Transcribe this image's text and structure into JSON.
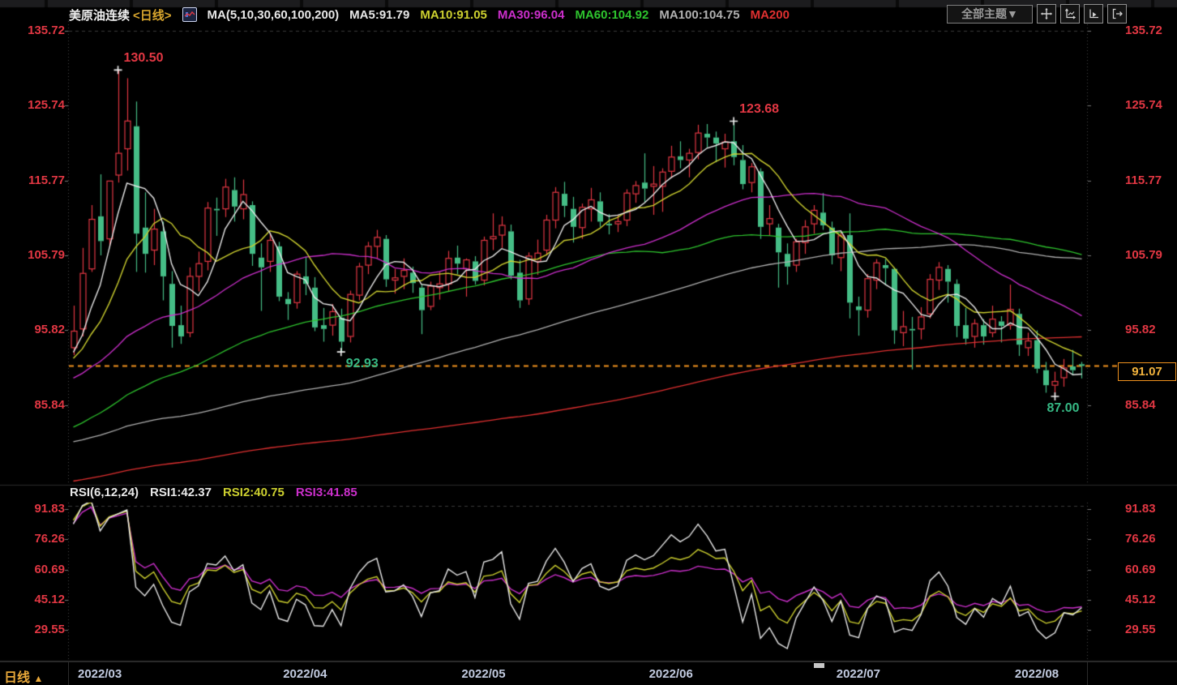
{
  "header": {
    "title": "美原油连续",
    "period": "<日线>",
    "indicator_icon": "candlestick-chart-icon",
    "legend": [
      {
        "text": "MA(5,10,30,60,100,200)",
        "color": "#e8e8e8"
      },
      {
        "text": "MA5:91.79",
        "color": "#e8e8e8"
      },
      {
        "text": "MA10:91.05",
        "color": "#cdd02f"
      },
      {
        "text": "MA30:96.04",
        "color": "#cc2fcc"
      },
      {
        "text": "MA60:104.92",
        "color": "#2ec52e"
      },
      {
        "text": "MA100:104.75",
        "color": "#b0b0b0"
      },
      {
        "text": "MA200",
        "color": "#e03030"
      }
    ],
    "toolbar": {
      "theme_button": "全部主题▼",
      "icons": [
        "pan-icon",
        "axis-scale-icon",
        "axis-play-icon",
        "exit-icon"
      ]
    }
  },
  "rsi_header": {
    "legend": [
      {
        "text": "RSI(6,12,24)",
        "color": "#e8e8e8"
      },
      {
        "text": "RSI1:42.37",
        "color": "#e8e8e8"
      },
      {
        "text": "RSI2:40.75",
        "color": "#cdd02f"
      },
      {
        "text": "RSI3:41.85",
        "color": "#cc2fcc"
      }
    ]
  },
  "bottom": {
    "period_label": "日线",
    "arrow": "▲"
  },
  "chart_data": {
    "type": "candlestick",
    "title": "美原油连续 (US Crude Oil Continuous)",
    "timeframe": "日线 (Daily)",
    "panels": [
      "price with MA(5,10,30,60,100,200)",
      "RSI(6,12,24)"
    ],
    "up_color": "#e23743",
    "down_color": "#45bd86",
    "price_ticks": [
      135.72,
      125.74,
      115.77,
      105.79,
      95.82,
      85.84
    ],
    "rsi_ticks": [
      91.83,
      76.26,
      60.69,
      45.12,
      29.55
    ],
    "x_ticks": [
      {
        "label": "2022/03",
        "index": 1
      },
      {
        "label": "2022/04",
        "index": 24
      },
      {
        "label": "2022/05",
        "index": 44
      },
      {
        "label": "2022/06",
        "index": 65
      },
      {
        "label": "2022/07",
        "index": 86
      },
      {
        "label": "2022/08",
        "index": 106
      }
    ],
    "last_price": 91.07,
    "last_price_label": "91.07",
    "annotations": [
      {
        "text": "130.50",
        "index": 5,
        "price": 130.5,
        "type": "high",
        "color": "#e23743"
      },
      {
        "text": "92.93",
        "index": 30,
        "price": 92.93,
        "type": "low",
        "color": "#36b884"
      },
      {
        "text": "123.68",
        "index": 74,
        "price": 123.68,
        "type": "high",
        "color": "#e23743"
      },
      {
        "text": "87.00",
        "index": 110,
        "price": 87.0,
        "type": "low",
        "color": "#36b884",
        "dx": -16
      }
    ],
    "ma": {
      "periods": [
        5,
        10,
        30,
        60,
        100,
        200
      ],
      "colors": [
        "#e8e8e8",
        "#cdd02f",
        "#cc2fcc",
        "#2ec52e",
        "#b0b0b0",
        "#e03030"
      ]
    },
    "rsi": {
      "periods": [
        6,
        12,
        24
      ],
      "colors": [
        "#e8e8e8",
        "#cdd02f",
        "#cc2fcc"
      ]
    },
    "history_close_anchors": [
      [
        -200,
        64.9
      ],
      [
        -185,
        69.5
      ],
      [
        -170,
        73.5
      ],
      [
        -160,
        71.5
      ],
      [
        -150,
        74.1
      ],
      [
        -140,
        67.5
      ],
      [
        -133,
        62.3
      ],
      [
        -125,
        69.0
      ],
      [
        -115,
        71.5
      ],
      [
        -105,
        75.5
      ],
      [
        -95,
        79.5
      ],
      [
        -85,
        83.5
      ],
      [
        -78,
        80.5
      ],
      [
        -70,
        78.7
      ],
      [
        -63,
        66.2
      ],
      [
        -55,
        71.7
      ],
      [
        -48,
        72.9
      ],
      [
        -40,
        79.0
      ],
      [
        -32,
        83.8
      ],
      [
        -24,
        86.6
      ],
      [
        -16,
        89.7
      ],
      [
        -8,
        91.0
      ],
      [
        -3,
        92.3
      ],
      [
        -2,
        92.8
      ],
      [
        -1,
        91.6
      ]
    ],
    "candles": [
      [
        93.5,
        99.1,
        92.5,
        95.7
      ],
      [
        96,
        106.8,
        95,
        103.4
      ],
      [
        104,
        112.5,
        103.6,
        110.6
      ],
      [
        111,
        116.6,
        105.8,
        107.7
      ],
      [
        108,
        115.7,
        107,
        115.7
      ],
      [
        116.5,
        130.5,
        115.5,
        119.4
      ],
      [
        120,
        129.4,
        117.1,
        123.7
      ],
      [
        123,
        126.3,
        103.6,
        108.7
      ],
      [
        109.5,
        114.2,
        103.5,
        106
      ],
      [
        106.5,
        112,
        104.5,
        109.3
      ],
      [
        109,
        110.3,
        99.8,
        103
      ],
      [
        102,
        103.7,
        93.5,
        96.4
      ],
      [
        96.5,
        99.1,
        94,
        95
      ],
      [
        95.5,
        104.2,
        94.9,
        103
      ],
      [
        103,
        106.3,
        101,
        104.7
      ],
      [
        105,
        112.9,
        103.8,
        112.1
      ],
      [
        112,
        113.5,
        108.4,
        111.8
      ],
      [
        112,
        116,
        110.9,
        114.9
      ],
      [
        114.5,
        116.2,
        110.3,
        112.3
      ],
      [
        112,
        115.9,
        110.6,
        113.9
      ],
      [
        112.5,
        113,
        104.4,
        106
      ],
      [
        105.5,
        107.4,
        98.4,
        104.2
      ],
      [
        105,
        108.8,
        103.6,
        107.8
      ],
      [
        107,
        107.6,
        99.7,
        100.3
      ],
      [
        100,
        100.9,
        97.2,
        99.3
      ],
      [
        99.5,
        103.7,
        98.7,
        103.3
      ],
      [
        103,
        105.6,
        100.5,
        102
      ],
      [
        101.5,
        102.9,
        95.7,
        96.2
      ],
      [
        96.5,
        98.8,
        94.3,
        96
      ],
      [
        96.5,
        99.3,
        95.1,
        98.3
      ],
      [
        97.5,
        98.7,
        92.93,
        94.3
      ],
      [
        95,
        101.1,
        94.2,
        100.6
      ],
      [
        100.5,
        104.8,
        99.8,
        104.3
      ],
      [
        104.5,
        107.6,
        103.3,
        107
      ],
      [
        107,
        109.2,
        105.4,
        108.2
      ],
      [
        108,
        108.5,
        101.6,
        102.6
      ],
      [
        102.5,
        104,
        100.7,
        102.8
      ],
      [
        103,
        105.4,
        101.3,
        103.8
      ],
      [
        103.5,
        104.3,
        100.8,
        102.1
      ],
      [
        101.5,
        102,
        95.3,
        98.5
      ],
      [
        99,
        102.3,
        98.5,
        101.7
      ],
      [
        101.5,
        103.6,
        99.9,
        102
      ],
      [
        102,
        106.4,
        101,
        105.4
      ],
      [
        105.5,
        107.1,
        103.3,
        104.7
      ],
      [
        104,
        105.4,
        100.3,
        105.2
      ],
      [
        105,
        105.7,
        101.9,
        102.4
      ],
      [
        102.5,
        108.3,
        101.8,
        107.8
      ],
      [
        108,
        111.4,
        106.5,
        108.3
      ],
      [
        108.5,
        111,
        106.8,
        109.8
      ],
      [
        109,
        109.9,
        102.6,
        103.1
      ],
      [
        103.5,
        105.2,
        98.8,
        99.8
      ],
      [
        100,
        106.2,
        99.2,
        105.7
      ],
      [
        105,
        107.9,
        103.2,
        106.1
      ],
      [
        106.5,
        111.2,
        105.8,
        110.5
      ],
      [
        110.5,
        114.9,
        109.4,
        114.2
      ],
      [
        114,
        115.6,
        110.9,
        112.4
      ],
      [
        112,
        113.6,
        107.5,
        109.6
      ],
      [
        109.5,
        112.7,
        108,
        112.2
      ],
      [
        112,
        114.8,
        110.3,
        113.2
      ],
      [
        113,
        114.2,
        109.6,
        110.3
      ],
      [
        110,
        111.3,
        108.6,
        109.8
      ],
      [
        110,
        111.2,
        108.9,
        110.3
      ],
      [
        110.5,
        114.6,
        109.7,
        114.1
      ],
      [
        114,
        115.7,
        112.8,
        115.1
      ],
      [
        115.5,
        119.4,
        112.9,
        114.7
      ],
      [
        115,
        117.7,
        111.2,
        115.3
      ],
      [
        115,
        117.4,
        111.6,
        116.9
      ],
      [
        117,
        120.4,
        116.1,
        118.9
      ],
      [
        119,
        121,
        117.4,
        118.5
      ],
      [
        118.5,
        120,
        116.2,
        119.4
      ],
      [
        119.5,
        123.2,
        118.6,
        122.1
      ],
      [
        122,
        123.3,
        120.2,
        121.5
      ],
      [
        121.5,
        122.3,
        118.2,
        120.7
      ],
      [
        120,
        122,
        117.5,
        120.9
      ],
      [
        121,
        123.68,
        117.8,
        118.9
      ],
      [
        118.5,
        120.5,
        114.6,
        115.3
      ],
      [
        115.5,
        118.1,
        114.2,
        117.6
      ],
      [
        117,
        117.4,
        108,
        109.6
      ],
      [
        110,
        112.5,
        108.5,
        110.7
      ],
      [
        109.5,
        110,
        101.5,
        106.2
      ],
      [
        106,
        107.4,
        101.9,
        104.3
      ],
      [
        104.5,
        108,
        103.6,
        107.6
      ],
      [
        107.5,
        110.5,
        106,
        109.6
      ],
      [
        110,
        112.5,
        108.7,
        111.8
      ],
      [
        111.5,
        114.1,
        109.2,
        109.8
      ],
      [
        109.5,
        110.3,
        104.6,
        105.8
      ],
      [
        105.5,
        108.9,
        103.7,
        108.4
      ],
      [
        108.5,
        111.4,
        97.4,
        99.5
      ],
      [
        99,
        100.3,
        95.1,
        98.5
      ],
      [
        98.5,
        103.3,
        97.5,
        102.7
      ],
      [
        102.5,
        105.3,
        101.3,
        104.8
      ],
      [
        104.5,
        105.3,
        101.8,
        104.1
      ],
      [
        104,
        104.2,
        94,
        95.8
      ],
      [
        95.5,
        98.4,
        93.7,
        96.3
      ],
      [
        96,
        97.6,
        90.6,
        95.8
      ],
      [
        96,
        98.9,
        94.6,
        97.6
      ],
      [
        98,
        103.3,
        97.4,
        102.6
      ],
      [
        102.5,
        104.9,
        101.2,
        104.2
      ],
      [
        104,
        104.5,
        99.5,
        102.3
      ],
      [
        102,
        102.6,
        94.9,
        96.4
      ],
      [
        96.5,
        98.8,
        93.9,
        94.7
      ],
      [
        95,
        97.3,
        93.5,
        96.7
      ],
      [
        96.5,
        97.3,
        93.9,
        95
      ],
      [
        95.5,
        99.1,
        94.9,
        97.3
      ],
      [
        97,
        97.7,
        94.2,
        96.4
      ],
      [
        96.5,
        101.9,
        95.9,
        98.6
      ],
      [
        98,
        98.7,
        92.4,
        93.9
      ],
      [
        93.5,
        95.5,
        92.4,
        94.4
      ],
      [
        94.5,
        95.8,
        90.1,
        90.7
      ],
      [
        90.5,
        91.6,
        87.5,
        88.5
      ],
      [
        88.5,
        90.3,
        87,
        89
      ],
      [
        89.5,
        92,
        88.3,
        90.8
      ],
      [
        91,
        93.2,
        89.8,
        90.5
      ],
      [
        91.3,
        91.6,
        89.4,
        91.07
      ]
    ]
  }
}
